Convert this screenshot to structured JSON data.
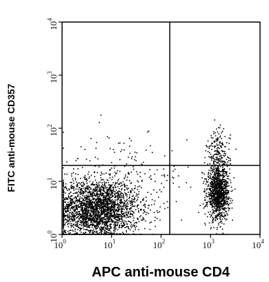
{
  "chart_data": {
    "type": "scatter",
    "title": "",
    "xlabel": "APC anti-mouse CD4",
    "ylabel": "FITC anti-mouse CD357",
    "xscale": "log",
    "yscale": "log",
    "xlim": [
      1,
      10000
    ],
    "ylim": [
      1,
      10000
    ],
    "x_ticks": [
      {
        "base": "10",
        "exp": "0",
        "value": 1
      },
      {
        "base": "10",
        "exp": "1",
        "value": 10
      },
      {
        "base": "10",
        "exp": "2",
        "value": 100
      },
      {
        "base": "10",
        "exp": "3",
        "value": 1000
      },
      {
        "base": "10",
        "exp": "4",
        "value": 10000
      }
    ],
    "y_ticks": [
      {
        "base": "10",
        "exp": "0",
        "value": 1
      },
      {
        "base": "10",
        "exp": "1",
        "value": 10
      },
      {
        "base": "10",
        "exp": "2",
        "value": 100
      },
      {
        "base": "10",
        "exp": "3",
        "value": 1000
      },
      {
        "base": "10",
        "exp": "4",
        "value": 10000
      }
    ],
    "quadrant_gates": {
      "x": 150,
      "y": 20
    },
    "grid": false,
    "legend": "none",
    "point_color": "#000000",
    "populations": [
      {
        "center": [
          5,
          3
        ],
        "spread_decades": [
          0.42,
          0.28
        ],
        "count": 2600
      },
      {
        "center": [
          1400,
          6
        ],
        "spread_decades": [
          0.11,
          0.24
        ],
        "count": 1100
      },
      {
        "center": [
          1400,
          30
        ],
        "spread_decades": [
          0.12,
          0.25
        ],
        "count": 220
      },
      {
        "center": [
          15,
          8
        ],
        "spread_decades": [
          0.7,
          0.5
        ],
        "count": 250
      }
    ]
  }
}
